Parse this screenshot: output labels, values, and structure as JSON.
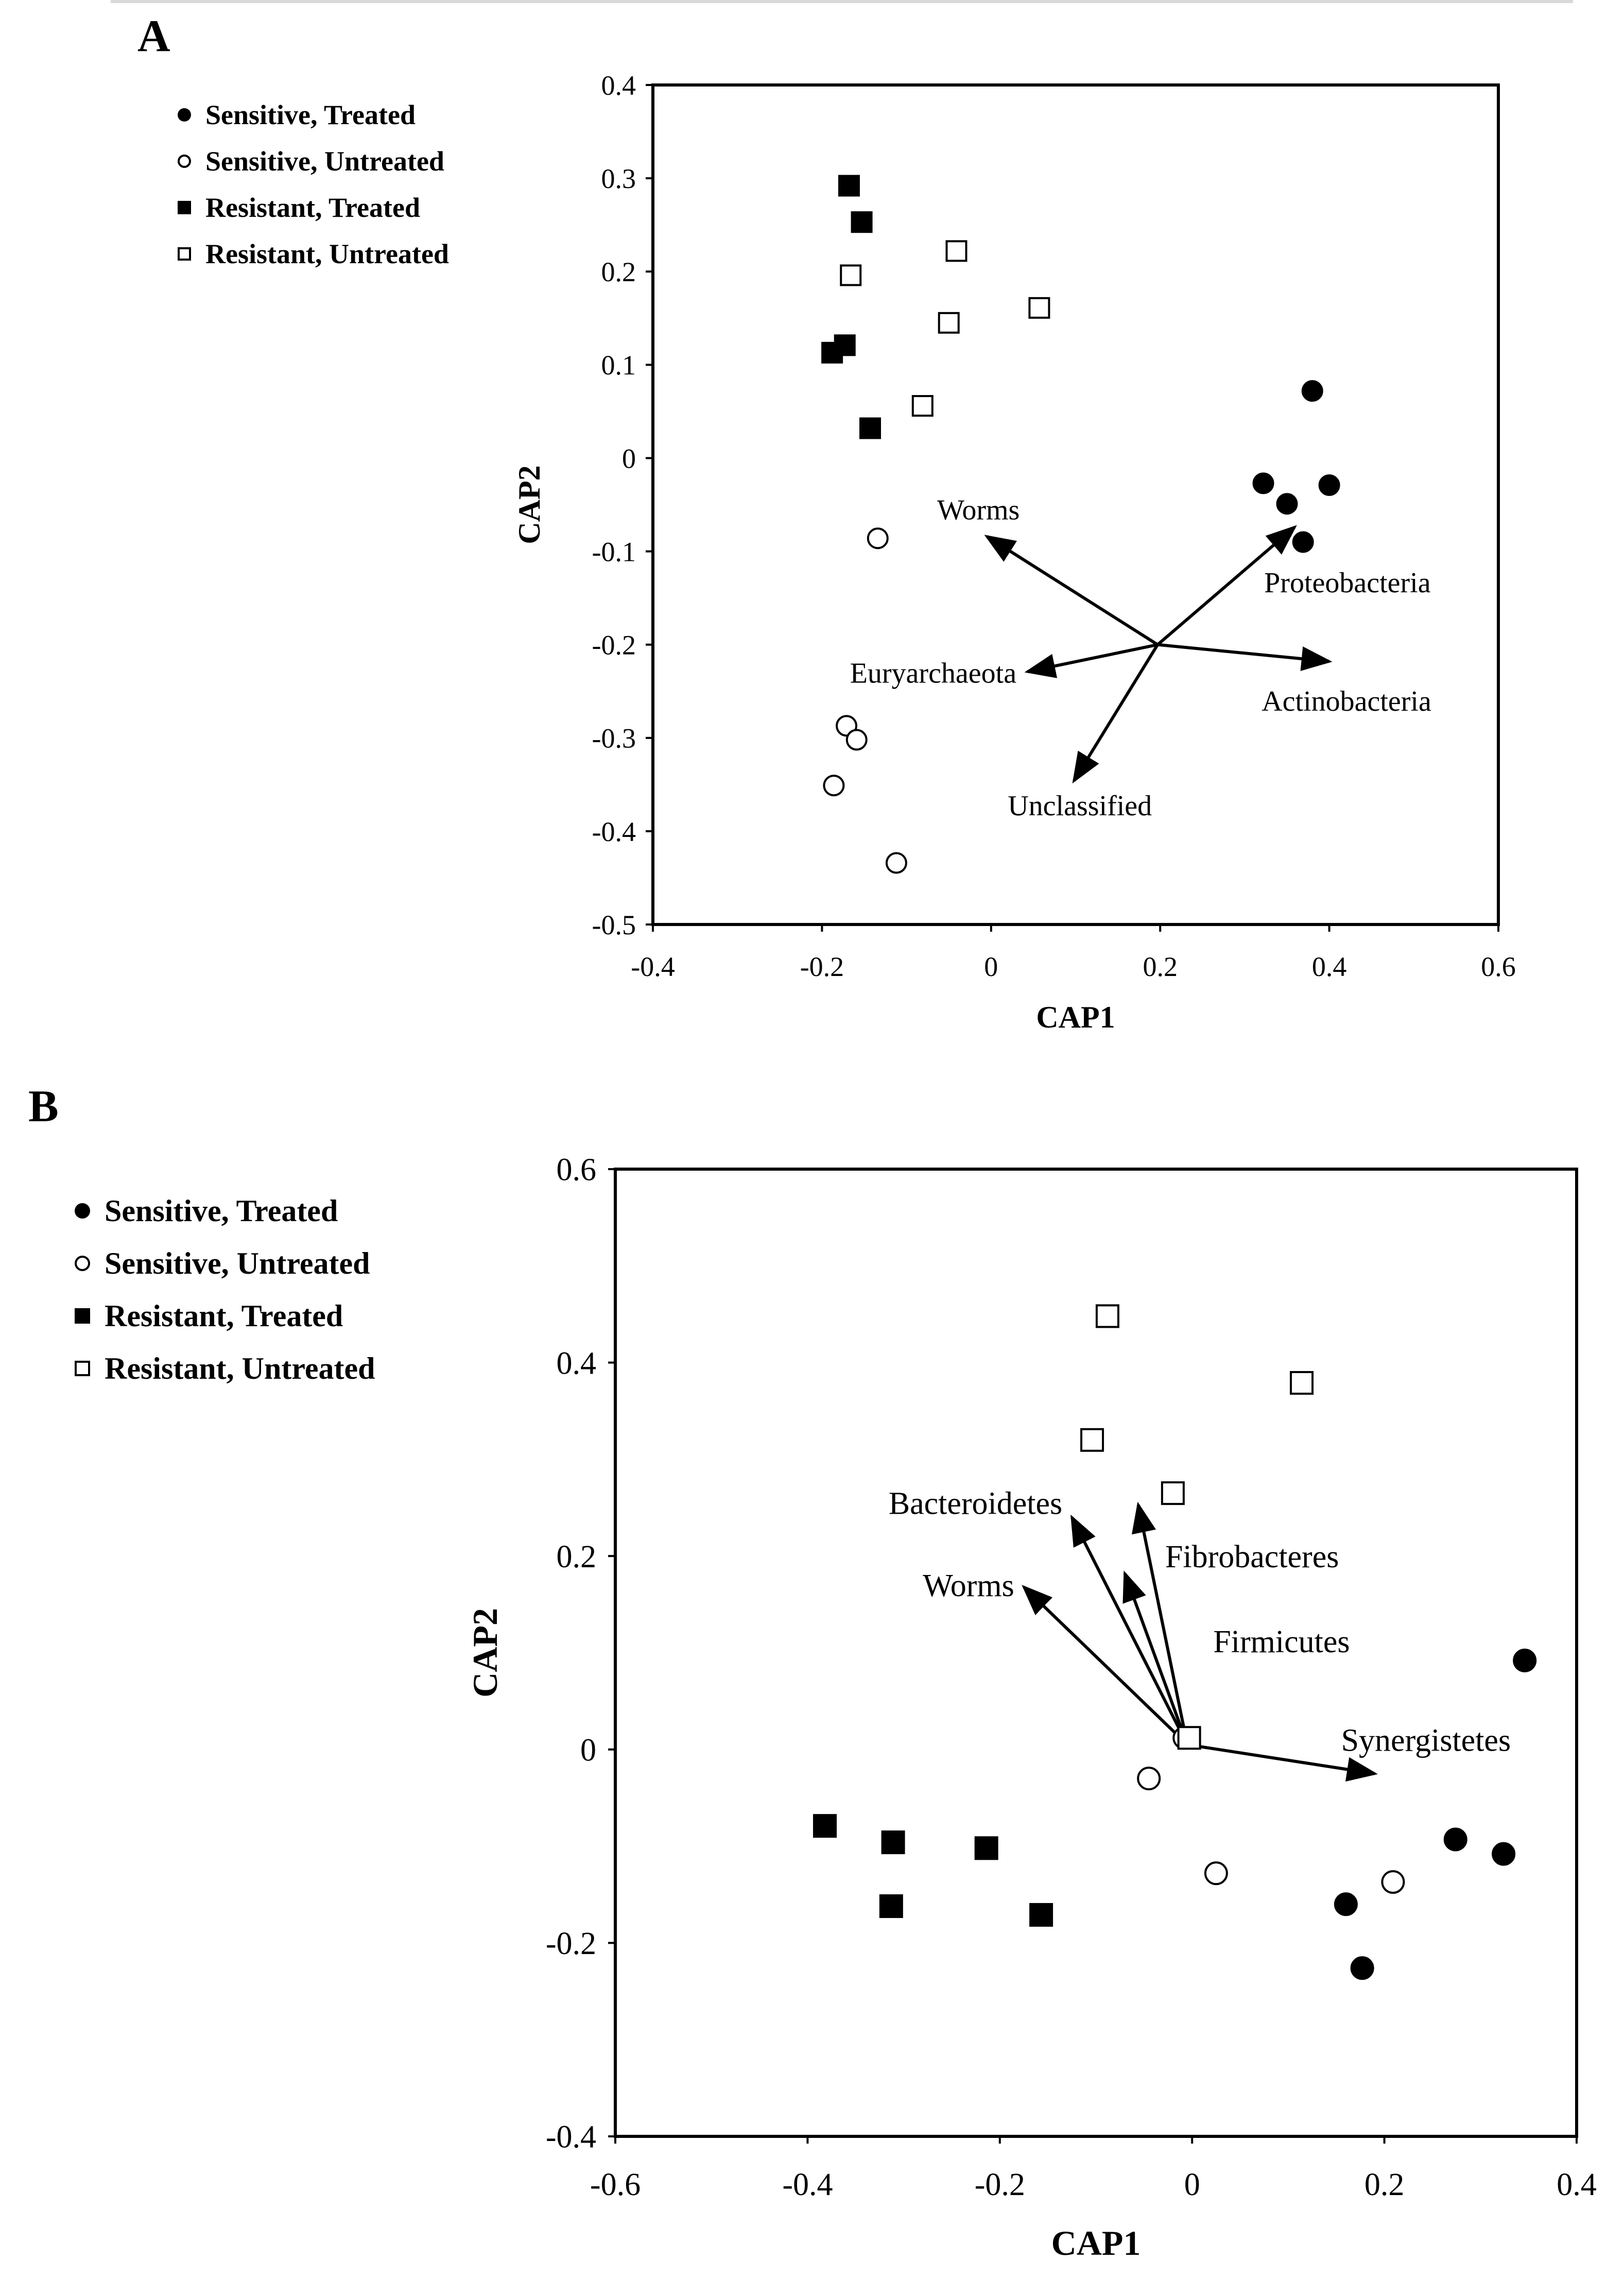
{
  "chart_data": [
    {
      "id": "A",
      "panel_label": "A",
      "type": "scatter",
      "xlabel": "CAP1",
      "ylabel": "CAP2",
      "xlim": [
        -0.4,
        0.6
      ],
      "ylim": [
        -0.5,
        0.4
      ],
      "xticks": [
        -0.4,
        -0.2,
        0,
        0.2,
        0.4,
        0.6
      ],
      "yticks": [
        0.4,
        0.3,
        0.2,
        0.1,
        0,
        -0.1,
        -0.2,
        -0.3,
        -0.4,
        -0.5
      ],
      "xtick_labels": [
        "-0.4",
        "-0.2",
        "0",
        "0.2",
        "0.4",
        "0.6"
      ],
      "ytick_labels": [
        "0.4",
        "0.3",
        "0.2",
        "0.1",
        "0",
        "-0.1",
        "-0.2",
        "-0.3",
        "-0.4",
        "-0.5"
      ],
      "legend": [
        {
          "label": "Sensitive, Treated",
          "marker": "circle-filled"
        },
        {
          "label": "Sensitive, Untreated",
          "marker": "circle-open"
        },
        {
          "label": "Resistant, Treated",
          "marker": "square-filled"
        },
        {
          "label": "Resistant, Untreated",
          "marker": "square-open"
        }
      ],
      "series": [
        {
          "name": "Sensitive, Treated",
          "marker": "circle-filled",
          "points": [
            [
              0.38,
              0.072
            ],
            [
              0.322,
              -0.027
            ],
            [
              0.35,
              -0.049
            ],
            [
              0.4,
              -0.029
            ],
            [
              0.369,
              -0.09
            ]
          ]
        },
        {
          "name": "Sensitive, Untreated",
          "marker": "circle-open",
          "points": [
            [
              -0.134,
              -0.086
            ],
            [
              -0.171,
              -0.287
            ],
            [
              -0.159,
              -0.302
            ],
            [
              -0.186,
              -0.351
            ],
            [
              -0.112,
              -0.434
            ]
          ]
        },
        {
          "name": "Resistant, Treated",
          "marker": "square-filled",
          "points": [
            [
              -0.168,
              0.292
            ],
            [
              -0.153,
              0.253
            ],
            [
              -0.188,
              0.113
            ],
            [
              -0.173,
              0.121
            ],
            [
              -0.143,
              0.032
            ]
          ]
        },
        {
          "name": "Resistant, Untreated",
          "marker": "square-open",
          "points": [
            [
              -0.166,
              0.196
            ],
            [
              -0.041,
              0.222
            ],
            [
              -0.05,
              0.145
            ],
            [
              0.057,
              0.161
            ],
            [
              -0.081,
              0.056
            ]
          ]
        }
      ],
      "arrows": [
        {
          "label": "Worms",
          "from": [
            0.197,
            -0.2
          ],
          "to": [
            -0.005,
            -0.084
          ],
          "label_pos": [
            -0.015,
            -0.055
          ],
          "anchor": "middle"
        },
        {
          "label": "Proteobacteria",
          "from": [
            0.197,
            -0.2
          ],
          "to": [
            0.359,
            -0.074
          ],
          "label_pos": [
            0.323,
            -0.133
          ],
          "anchor": "start"
        },
        {
          "label": "Actinobacteria",
          "from": [
            0.197,
            -0.2
          ],
          "to": [
            0.4,
            -0.218
          ],
          "label_pos": [
            0.32,
            -0.26
          ],
          "anchor": "start"
        },
        {
          "label": "Euryarchaeota",
          "from": [
            0.197,
            -0.2
          ],
          "to": [
            0.043,
            -0.229
          ],
          "label_pos": [
            0.03,
            -0.23
          ],
          "anchor": "end"
        },
        {
          "label": "Unclassified",
          "from": [
            0.197,
            -0.2
          ],
          "to": [
            0.098,
            -0.346
          ],
          "label_pos": [
            0.105,
            -0.372
          ],
          "anchor": "middle"
        }
      ]
    },
    {
      "id": "B",
      "panel_label": "B",
      "type": "scatter",
      "xlabel": "CAP1",
      "ylabel": "CAP2",
      "xlim": [
        -0.6,
        0.4
      ],
      "ylim": [
        -0.4,
        0.6
      ],
      "xticks": [
        -0.6,
        -0.4,
        -0.2,
        0,
        0.2,
        0.4
      ],
      "yticks": [
        0.6,
        0.4,
        0.2,
        0,
        -0.2,
        -0.4
      ],
      "xtick_labels": [
        "-0.6",
        "-0.4",
        "-0.2",
        "0",
        "0.2",
        "0.4"
      ],
      "ytick_labels": [
        "0.6",
        "0.4",
        "0.2",
        "0",
        "-0.2",
        "-0.4"
      ],
      "legend": [
        {
          "label": "Sensitive, Treated",
          "marker": "circle-filled"
        },
        {
          "label": "Sensitive, Untreated",
          "marker": "circle-open"
        },
        {
          "label": "Resistant, Treated",
          "marker": "square-filled"
        },
        {
          "label": "Resistant, Untreated",
          "marker": "square-open"
        }
      ],
      "series": [
        {
          "name": "Sensitive, Treated",
          "marker": "circle-filled",
          "points": [
            [
              0.346,
              0.092
            ],
            [
              0.274,
              -0.093
            ],
            [
              0.324,
              -0.108
            ],
            [
              0.16,
              -0.16
            ],
            [
              0.177,
              -0.226
            ]
          ]
        },
        {
          "name": "Sensitive, Untreated",
          "marker": "circle-open",
          "points": [
            [
              -0.045,
              -0.03
            ],
            [
              0.025,
              -0.128
            ],
            [
              0.209,
              -0.137
            ],
            [
              -0.008,
              0.012
            ]
          ]
        },
        {
          "name": "Resistant, Treated",
          "marker": "square-filled",
          "points": [
            [
              -0.382,
              -0.079
            ],
            [
              -0.311,
              -0.096
            ],
            [
              -0.214,
              -0.102
            ],
            [
              -0.313,
              -0.162
            ],
            [
              -0.157,
              -0.171
            ]
          ]
        },
        {
          "name": "Resistant, Untreated",
          "marker": "square-open",
          "points": [
            [
              -0.088,
              0.448
            ],
            [
              0.114,
              0.379
            ],
            [
              -0.104,
              0.32
            ],
            [
              -0.02,
              0.265
            ],
            [
              -0.003,
              0.012
            ]
          ]
        }
      ],
      "arrows": [
        {
          "label": "Bacteroidetes",
          "from": [
            -0.005,
            0.005
          ],
          "to": [
            -0.125,
            0.24
          ],
          "label_pos": [
            -0.135,
            0.255
          ],
          "anchor": "end"
        },
        {
          "label": "Fibrobacteres",
          "from": [
            -0.005,
            0.005
          ],
          "to": [
            -0.056,
            0.253
          ],
          "label_pos": [
            -0.028,
            0.2
          ],
          "anchor": "start"
        },
        {
          "label": "Firmicutes",
          "from": [
            -0.005,
            0.005
          ],
          "to": [
            -0.07,
            0.182
          ],
          "label_pos": [
            0.022,
            0.112
          ],
          "anchor": "start"
        },
        {
          "label": "Worms",
          "from": [
            -0.005,
            0.005
          ],
          "to": [
            -0.175,
            0.168
          ],
          "label_pos": [
            -0.185,
            0.17
          ],
          "anchor": "end"
        },
        {
          "label": "Synergistetes",
          "from": [
            -0.005,
            0.005
          ],
          "to": [
            0.19,
            -0.025
          ],
          "label_pos": [
            0.155,
            0.01
          ],
          "anchor": "start"
        }
      ]
    }
  ]
}
